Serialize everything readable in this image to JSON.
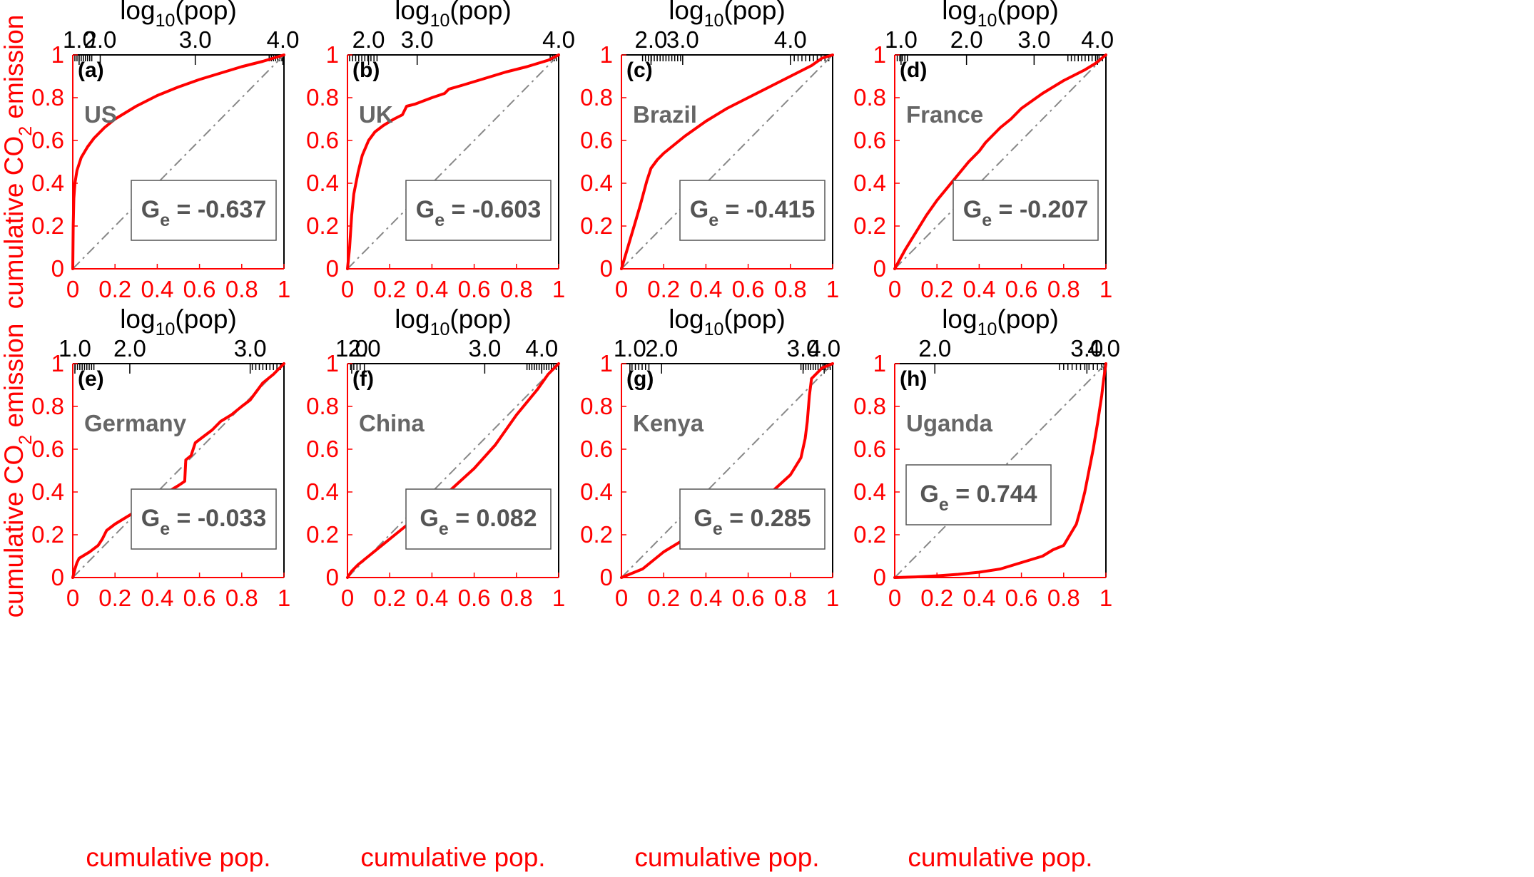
{
  "labels": {
    "top_axis": "log",
    "top_axis_sub": "10",
    "top_axis_rest": "(pop)",
    "y_axis_main": "cumulative CO",
    "y_axis_sub": "2",
    "y_axis_rest": " emission",
    "x_axis": "cumulative pop.",
    "ge_main": "G",
    "ge_sub": "e"
  },
  "colors": {
    "curve": "#ff0000",
    "diagonal": "#888888",
    "axis_red": "#ff0000",
    "text_gray": "#555555"
  },
  "chart_data": [
    {
      "type": "line",
      "panel": "(a)",
      "country": "US",
      "ge": "= -0.637",
      "ge_pos": "bottom-right",
      "xlim": [
        0,
        1
      ],
      "ylim": [
        0,
        1
      ],
      "x_ticks": [
        "0",
        "0.2",
        "0.4",
        "0.6",
        "0.8",
        "1"
      ],
      "y_ticks": [
        "0",
        "0.2",
        "0.4",
        "0.6",
        "0.8",
        "1"
      ],
      "top_ticks": [
        {
          "label": "1.0",
          "x": 0.03
        },
        {
          "label": "2.0",
          "x": 0.13
        },
        {
          "label": "3.0",
          "x": 0.58
        },
        {
          "label": "4.0",
          "x": 0.995
        }
      ],
      "minor_ticks": {
        "from": 0.01,
        "to": 0.09,
        "count": 9,
        "extra_from": 0.93,
        "extra_to": 1.0,
        "extra_count": 8
      },
      "x": [
        0,
        0.002,
        0.005,
        0.01,
        0.02,
        0.04,
        0.07,
        0.1,
        0.15,
        0.2,
        0.3,
        0.4,
        0.5,
        0.6,
        0.7,
        0.8,
        0.9,
        0.95,
        1
      ],
      "y": [
        0,
        0.2,
        0.33,
        0.4,
        0.46,
        0.52,
        0.57,
        0.61,
        0.66,
        0.7,
        0.76,
        0.81,
        0.85,
        0.885,
        0.915,
        0.945,
        0.97,
        0.985,
        1
      ]
    },
    {
      "type": "line",
      "panel": "(b)",
      "country": "UK",
      "ge": "= -0.603",
      "ge_pos": "bottom-right",
      "xlim": [
        0,
        1
      ],
      "ylim": [
        0,
        1
      ],
      "x_ticks": [
        "0",
        "0.2",
        "0.4",
        "0.6",
        "0.8",
        "1"
      ],
      "y_ticks": [
        "0",
        "0.2",
        "0.4",
        "0.6",
        "0.8",
        "1"
      ],
      "top_ticks": [
        {
          "label": "2.0",
          "x": 0.1
        },
        {
          "label": "3.0",
          "x": 0.33
        },
        {
          "label": "4.0",
          "x": 1.0
        }
      ],
      "minor_ticks": {
        "from": 0.01,
        "to": 0.14,
        "count": 10,
        "extra_from": 0.96,
        "extra_to": 1.0,
        "extra_count": 5
      },
      "x": [
        0,
        0.01,
        0.02,
        0.03,
        0.05,
        0.07,
        0.1,
        0.13,
        0.17,
        0.22,
        0.26,
        0.28,
        0.32,
        0.4,
        0.46,
        0.48,
        0.55,
        0.65,
        0.75,
        0.85,
        0.95,
        1
      ],
      "y": [
        0,
        0.1,
        0.25,
        0.35,
        0.45,
        0.53,
        0.6,
        0.64,
        0.67,
        0.7,
        0.72,
        0.76,
        0.77,
        0.8,
        0.82,
        0.84,
        0.86,
        0.89,
        0.92,
        0.945,
        0.975,
        1
      ]
    },
    {
      "type": "line",
      "panel": "(c)",
      "country": "Brazil",
      "ge": "= -0.415",
      "ge_pos": "bottom-right",
      "xlim": [
        0,
        1
      ],
      "ylim": [
        0,
        1
      ],
      "x_ticks": [
        "0",
        "0.2",
        "0.4",
        "0.6",
        "0.8",
        "1"
      ],
      "y_ticks": [
        "0",
        "0.2",
        "0.4",
        "0.6",
        "0.8",
        "1"
      ],
      "top_ticks": [
        {
          "label": "2.0",
          "x": 0.14
        },
        {
          "label": "3.0",
          "x": 0.29
        },
        {
          "label": "4.0",
          "x": 0.8
        }
      ],
      "minor_ticks": {
        "from": 0.1,
        "to": 0.28,
        "count": 14,
        "extra_from": 0.8,
        "extra_to": 1.0,
        "extra_count": 12
      },
      "x": [
        0,
        0.03,
        0.06,
        0.09,
        0.12,
        0.14,
        0.17,
        0.2,
        0.25,
        0.3,
        0.35,
        0.4,
        0.5,
        0.6,
        0.7,
        0.8,
        0.9,
        0.95,
        1
      ],
      "y": [
        0,
        0.1,
        0.2,
        0.3,
        0.41,
        0.47,
        0.51,
        0.54,
        0.58,
        0.62,
        0.655,
        0.69,
        0.75,
        0.8,
        0.85,
        0.9,
        0.95,
        0.985,
        1
      ]
    },
    {
      "type": "line",
      "panel": "(d)",
      "country": "France",
      "ge": "= -0.207",
      "ge_pos": "bottom-right",
      "xlim": [
        0,
        1
      ],
      "ylim": [
        0,
        1
      ],
      "x_ticks": [
        "0",
        "0.2",
        "0.4",
        "0.6",
        "0.8",
        "1"
      ],
      "y_ticks": [
        "0",
        "0.2",
        "0.4",
        "0.6",
        "0.8",
        "1"
      ],
      "top_ticks": [
        {
          "label": "1.0",
          "x": 0.03
        },
        {
          "label": "2.0",
          "x": 0.34
        },
        {
          "label": "3.0",
          "x": 0.66
        },
        {
          "label": "4.0",
          "x": 0.96
        }
      ],
      "minor_ticks": {
        "from": 0.0,
        "to": 0.06,
        "count": 6,
        "extra_from": 0.82,
        "extra_to": 1.0,
        "extra_count": 12
      },
      "x": [
        0,
        0.05,
        0.1,
        0.15,
        0.2,
        0.25,
        0.3,
        0.35,
        0.4,
        0.43,
        0.45,
        0.5,
        0.55,
        0.6,
        0.7,
        0.8,
        0.9,
        0.95,
        1
      ],
      "y": [
        0,
        0.09,
        0.17,
        0.25,
        0.32,
        0.38,
        0.44,
        0.5,
        0.55,
        0.59,
        0.61,
        0.66,
        0.7,
        0.75,
        0.82,
        0.88,
        0.93,
        0.96,
        1
      ]
    },
    {
      "type": "line",
      "panel": "(e)",
      "country": "Germany",
      "ge": "= -0.033",
      "ge_pos": "bottom-right",
      "xlim": [
        0,
        1
      ],
      "ylim": [
        0,
        1
      ],
      "x_ticks": [
        "0",
        "0.2",
        "0.4",
        "0.6",
        "0.8",
        "1"
      ],
      "y_ticks": [
        "0",
        "0.2",
        "0.4",
        "0.6",
        "0.8",
        "1"
      ],
      "top_ticks": [
        {
          "label": "1.0",
          "x": 0.01
        },
        {
          "label": "2.0",
          "x": 0.27
        },
        {
          "label": "3.0",
          "x": 0.84
        }
      ],
      "minor_ticks": {
        "from": 0.0,
        "to": 0.1,
        "count": 10,
        "extra_from": 0.85,
        "extra_to": 1.0,
        "extra_count": 10
      },
      "x": [
        0,
        0.01,
        0.02,
        0.03,
        0.08,
        0.12,
        0.14,
        0.16,
        0.2,
        0.25,
        0.3,
        0.35,
        0.4,
        0.45,
        0.5,
        0.53,
        0.535,
        0.56,
        0.58,
        0.62,
        0.66,
        0.7,
        0.75,
        0.8,
        0.84,
        0.87,
        0.9,
        0.95,
        1
      ],
      "y": [
        0,
        0.04,
        0.07,
        0.09,
        0.12,
        0.15,
        0.18,
        0.22,
        0.25,
        0.28,
        0.31,
        0.34,
        0.37,
        0.4,
        0.43,
        0.45,
        0.55,
        0.57,
        0.63,
        0.66,
        0.69,
        0.73,
        0.76,
        0.8,
        0.83,
        0.87,
        0.91,
        0.95,
        1
      ]
    },
    {
      "type": "line",
      "panel": "(f)",
      "country": "China",
      "ge": "= 0.082",
      "ge_pos": "bottom-right",
      "xlim": [
        0,
        1
      ],
      "ylim": [
        0,
        1
      ],
      "x_ticks": [
        "0",
        "0.2",
        "0.4",
        "0.6",
        "0.8",
        "1"
      ],
      "y_ticks": [
        "0",
        "0.2",
        "0.4",
        "0.6",
        "0.8",
        "1"
      ],
      "top_ticks": [
        {
          "label": "1.0",
          "x": 0.02
        },
        {
          "label": "2.0",
          "x": 0.08
        },
        {
          "label": "3.0",
          "x": 0.65
        },
        {
          "label": "4.0",
          "x": 0.92
        }
      ],
      "minor_ticks": {
        "from": 0.0,
        "to": 0.06,
        "count": 5,
        "extra_from": 0.85,
        "extra_to": 1.0,
        "extra_count": 14
      },
      "x": [
        0,
        0.02,
        0.05,
        0.1,
        0.2,
        0.3,
        0.4,
        0.5,
        0.6,
        0.7,
        0.75,
        0.8,
        0.9,
        0.95,
        1
      ],
      "y": [
        0,
        0.03,
        0.06,
        0.1,
        0.18,
        0.26,
        0.33,
        0.42,
        0.51,
        0.62,
        0.69,
        0.76,
        0.88,
        0.95,
        1
      ]
    },
    {
      "type": "line",
      "panel": "(g)",
      "country": "Kenya",
      "ge": "= 0.285",
      "ge_pos": "bottom-right",
      "xlim": [
        0,
        1
      ],
      "ylim": [
        0,
        1
      ],
      "x_ticks": [
        "0",
        "0.2",
        "0.4",
        "0.6",
        "0.8",
        "1"
      ],
      "y_ticks": [
        "0",
        "0.2",
        "0.4",
        "0.6",
        "0.8",
        "1"
      ],
      "top_ticks": [
        {
          "label": "1.0",
          "x": 0.04
        },
        {
          "label": "2.0",
          "x": 0.19
        },
        {
          "label": "3.0",
          "x": 0.86
        },
        {
          "label": "4.0",
          "x": 0.96
        }
      ],
      "minor_ticks": {
        "from": 0.05,
        "to": 0.13,
        "count": 6,
        "extra_from": 0.85,
        "extra_to": 1.0,
        "extra_count": 14
      },
      "x": [
        0,
        0.05,
        0.1,
        0.15,
        0.2,
        0.3,
        0.4,
        0.5,
        0.6,
        0.7,
        0.8,
        0.85,
        0.87,
        0.88,
        0.89,
        0.9,
        0.95,
        1
      ],
      "y": [
        0,
        0.02,
        0.04,
        0.08,
        0.12,
        0.18,
        0.24,
        0.29,
        0.34,
        0.39,
        0.48,
        0.56,
        0.65,
        0.73,
        0.85,
        0.93,
        0.98,
        1
      ]
    },
    {
      "type": "line",
      "panel": "(h)",
      "country": "Uganda",
      "ge": "= 0.744",
      "ge_pos": "mid-left",
      "xlim": [
        0,
        1
      ],
      "ylim": [
        0,
        1
      ],
      "x_ticks": [
        "0",
        "0.2",
        "0.4",
        "0.6",
        "0.8",
        "1"
      ],
      "y_ticks": [
        "0",
        "0.2",
        "0.4",
        "0.6",
        "0.8",
        "1"
      ],
      "top_ticks": [
        {
          "label": "2.0",
          "x": 0.19
        },
        {
          "label": "3.0",
          "x": 0.91
        },
        {
          "label": "4.0",
          "x": 0.99
        }
      ],
      "minor_ticks": {
        "from": 0.78,
        "to": 1.0,
        "count": 12,
        "extra_from": 0.0,
        "extra_to": 0.0,
        "extra_count": 0
      },
      "x": [
        0,
        0.1,
        0.2,
        0.3,
        0.4,
        0.5,
        0.6,
        0.7,
        0.75,
        0.8,
        0.83,
        0.86,
        0.88,
        0.9,
        0.92,
        0.94,
        0.96,
        0.98,
        0.99,
        1
      ],
      "y": [
        0,
        0.003,
        0.008,
        0.015,
        0.025,
        0.04,
        0.07,
        0.1,
        0.13,
        0.15,
        0.2,
        0.25,
        0.32,
        0.4,
        0.5,
        0.6,
        0.72,
        0.85,
        0.93,
        1
      ]
    }
  ]
}
